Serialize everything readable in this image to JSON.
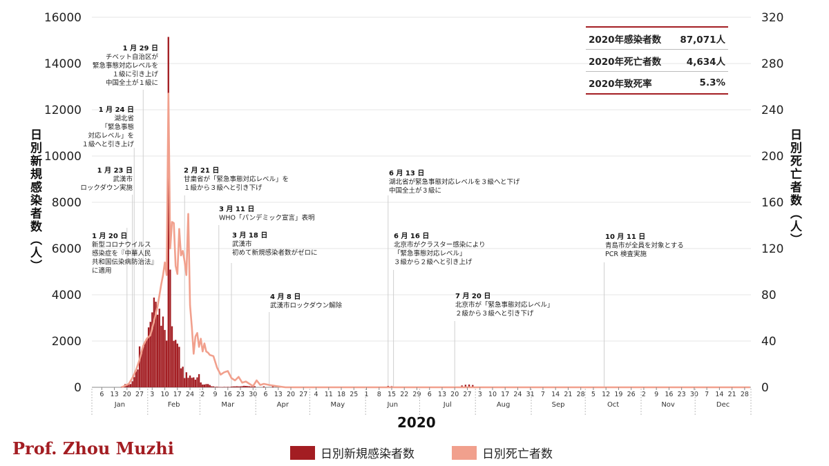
{
  "chart_data": {
    "type": "bar",
    "year_label": "2020",
    "left_axis": {
      "label": "日別新規感染者数（人）",
      "ylim": [
        0,
        16000
      ],
      "ticks": [
        "0",
        "2000",
        "4000",
        "6000",
        "8000",
        "10000",
        "12000",
        "14000",
        "16000"
      ]
    },
    "right_axis": {
      "label": "日別死亡者数（人）",
      "ylim": [
        0,
        320
      ],
      "ticks": [
        "0",
        "40",
        "80",
        "120",
        "160",
        "200",
        "240",
        "280",
        "320"
      ]
    },
    "months": [
      "Jan",
      "Feb",
      "Mar",
      "Apr",
      "May",
      "Jun",
      "Jul",
      "Aug",
      "Sep",
      "Oct",
      "Nov",
      "Dec"
    ],
    "x_ticks": [
      {
        "m": 1,
        "d": 6
      },
      {
        "m": 1,
        "d": 13
      },
      {
        "m": 1,
        "d": 20
      },
      {
        "m": 1,
        "d": 27
      },
      {
        "m": 2,
        "d": 3
      },
      {
        "m": 2,
        "d": 10
      },
      {
        "m": 2,
        "d": 17
      },
      {
        "m": 2,
        "d": 24
      },
      {
        "m": 3,
        "d": 2
      },
      {
        "m": 3,
        "d": 9
      },
      {
        "m": 3,
        "d": 16
      },
      {
        "m": 3,
        "d": 23
      },
      {
        "m": 3,
        "d": 30
      },
      {
        "m": 4,
        "d": 6
      },
      {
        "m": 4,
        "d": 13
      },
      {
        "m": 4,
        "d": 20
      },
      {
        "m": 4,
        "d": 27
      },
      {
        "m": 5,
        "d": 4
      },
      {
        "m": 5,
        "d": 11
      },
      {
        "m": 5,
        "d": 18
      },
      {
        "m": 5,
        "d": 25
      },
      {
        "m": 6,
        "d": 1
      },
      {
        "m": 6,
        "d": 8
      },
      {
        "m": 6,
        "d": 15
      },
      {
        "m": 6,
        "d": 22
      },
      {
        "m": 6,
        "d": 29
      },
      {
        "m": 7,
        "d": 6
      },
      {
        "m": 7,
        "d": 13
      },
      {
        "m": 7,
        "d": 20
      },
      {
        "m": 7,
        "d": 27
      },
      {
        "m": 8,
        "d": 3
      },
      {
        "m": 8,
        "d": 10
      },
      {
        "m": 8,
        "d": 17
      },
      {
        "m": 8,
        "d": 24
      },
      {
        "m": 8,
        "d": 31
      },
      {
        "m": 9,
        "d": 7
      },
      {
        "m": 9,
        "d": 14
      },
      {
        "m": 9,
        "d": 21
      },
      {
        "m": 9,
        "d": 28
      },
      {
        "m": 10,
        "d": 5
      },
      {
        "m": 10,
        "d": 12
      },
      {
        "m": 10,
        "d": 19
      },
      {
        "m": 10,
        "d": 26
      },
      {
        "m": 11,
        "d": 2
      },
      {
        "m": 11,
        "d": 9
      },
      {
        "m": 11,
        "d": 16
      },
      {
        "m": 11,
        "d": 23
      },
      {
        "m": 11,
        "d": 30
      },
      {
        "m": 12,
        "d": 7
      },
      {
        "m": 12,
        "d": 14
      },
      {
        "m": 12,
        "d": 21
      },
      {
        "m": 12,
        "d": 28
      }
    ],
    "series": [
      {
        "name": "日別新規感染者数",
        "color": "#a31d22",
        "axis": "left",
        "points": [
          [
            "2020-01-17",
            20
          ],
          [
            "2020-01-18",
            60
          ],
          [
            "2020-01-19",
            140
          ],
          [
            "2020-01-20",
            80
          ],
          [
            "2020-01-21",
            150
          ],
          [
            "2020-01-22",
            140
          ],
          [
            "2020-01-23",
            260
          ],
          [
            "2020-01-24",
            440
          ],
          [
            "2020-01-25",
            690
          ],
          [
            "2020-01-26",
            770
          ],
          [
            "2020-01-27",
            1770
          ],
          [
            "2020-01-28",
            1460
          ],
          [
            "2020-01-29",
            1740
          ],
          [
            "2020-01-30",
            1980
          ],
          [
            "2020-01-31",
            2100
          ],
          [
            "2020-02-01",
            2590
          ],
          [
            "2020-02-02",
            2830
          ],
          [
            "2020-02-03",
            3240
          ],
          [
            "2020-02-04",
            3880
          ],
          [
            "2020-02-05",
            3700
          ],
          [
            "2020-02-06",
            3140
          ],
          [
            "2020-02-07",
            3400
          ],
          [
            "2020-02-08",
            2660
          ],
          [
            "2020-02-09",
            3060
          ],
          [
            "2020-02-10",
            2480
          ],
          [
            "2020-02-11",
            2020
          ],
          [
            "2020-02-12",
            15150
          ],
          [
            "2020-02-13",
            5090
          ],
          [
            "2020-02-14",
            2640
          ],
          [
            "2020-02-15",
            2010
          ],
          [
            "2020-02-16",
            2050
          ],
          [
            "2020-02-17",
            1890
          ],
          [
            "2020-02-18",
            1750
          ],
          [
            "2020-02-19",
            820
          ],
          [
            "2020-02-20",
            890
          ],
          [
            "2020-02-21",
            400
          ],
          [
            "2020-02-22",
            650
          ],
          [
            "2020-02-23",
            410
          ],
          [
            "2020-02-24",
            510
          ],
          [
            "2020-02-25",
            410
          ],
          [
            "2020-02-26",
            430
          ],
          [
            "2020-02-27",
            330
          ],
          [
            "2020-02-28",
            430
          ],
          [
            "2020-02-29",
            570
          ],
          [
            "2020-03-01",
            210
          ],
          [
            "2020-03-02",
            120
          ],
          [
            "2020-03-03",
            120
          ],
          [
            "2020-03-04",
            140
          ],
          [
            "2020-03-05",
            140
          ],
          [
            "2020-03-06",
            100
          ],
          [
            "2020-03-07",
            45
          ],
          [
            "2020-03-08",
            40
          ],
          [
            "2020-03-09",
            20
          ],
          [
            "2020-03-10",
            25
          ],
          [
            "2020-03-11",
            15
          ],
          [
            "2020-03-12",
            15
          ],
          [
            "2020-03-13",
            10
          ],
          [
            "2020-03-14",
            20
          ],
          [
            "2020-03-15",
            15
          ],
          [
            "2020-03-16",
            20
          ],
          [
            "2020-03-17",
            15
          ],
          [
            "2020-03-18",
            30
          ],
          [
            "2020-03-19",
            40
          ],
          [
            "2020-03-20",
            40
          ],
          [
            "2020-03-21",
            45
          ],
          [
            "2020-03-22",
            40
          ],
          [
            "2020-03-23",
            40
          ],
          [
            "2020-03-24",
            50
          ],
          [
            "2020-03-25",
            65
          ],
          [
            "2020-03-26",
            60
          ],
          [
            "2020-03-27",
            55
          ],
          [
            "2020-03-28",
            45
          ],
          [
            "2020-03-29",
            35
          ],
          [
            "2020-03-30",
            30
          ],
          [
            "2020-03-31",
            45
          ],
          [
            "2020-04-05",
            40
          ],
          [
            "2020-04-10",
            40
          ],
          [
            "2020-04-15",
            40
          ],
          [
            "2020-04-20",
            20
          ],
          [
            "2020-04-30",
            10
          ],
          [
            "2020-06-13",
            60
          ],
          [
            "2020-06-15",
            50
          ],
          [
            "2020-07-24",
            80
          ],
          [
            "2020-07-26",
            110
          ],
          [
            "2020-07-28",
            120
          ],
          [
            "2020-07-30",
            100
          ],
          [
            "2020-08-05",
            30
          ],
          [
            "2020-10-12",
            20
          ],
          [
            "2020-11-01",
            30
          ]
        ]
      },
      {
        "name": "日別死亡者数",
        "color": "#f1a08d",
        "axis": "right",
        "points": [
          [
            "2020-01-17",
            0
          ],
          [
            "2020-01-21",
            3
          ],
          [
            "2020-01-23",
            8
          ],
          [
            "2020-01-25",
            15
          ],
          [
            "2020-01-27",
            24
          ],
          [
            "2020-01-29",
            36
          ],
          [
            "2020-01-31",
            42
          ],
          [
            "2020-02-02",
            45
          ],
          [
            "2020-02-04",
            57
          ],
          [
            "2020-02-06",
            70
          ],
          [
            "2020-02-08",
            89
          ],
          [
            "2020-02-09",
            97
          ],
          [
            "2020-02-10",
            108
          ],
          [
            "2020-02-11",
            97
          ],
          [
            "2020-02-12",
            254
          ],
          [
            "2020-02-13",
            120
          ],
          [
            "2020-02-14",
            143
          ],
          [
            "2020-02-15",
            142
          ],
          [
            "2020-02-16",
            105
          ],
          [
            "2020-02-17",
            98
          ],
          [
            "2020-02-18",
            137
          ],
          [
            "2020-02-19",
            114
          ],
          [
            "2020-02-20",
            118
          ],
          [
            "2020-02-21",
            109
          ],
          [
            "2020-02-22",
            97
          ],
          [
            "2020-02-23",
            150
          ],
          [
            "2020-02-24",
            71
          ],
          [
            "2020-02-25",
            52
          ],
          [
            "2020-02-26",
            29
          ],
          [
            "2020-02-27",
            44
          ],
          [
            "2020-02-28",
            47
          ],
          [
            "2020-02-29",
            35
          ],
          [
            "2020-03-01",
            42
          ],
          [
            "2020-03-02",
            31
          ],
          [
            "2020-03-03",
            38
          ],
          [
            "2020-03-04",
            31
          ],
          [
            "2020-03-05",
            30
          ],
          [
            "2020-03-06",
            28
          ],
          [
            "2020-03-08",
            27
          ],
          [
            "2020-03-10",
            17
          ],
          [
            "2020-03-12",
            11
          ],
          [
            "2020-03-14",
            13
          ],
          [
            "2020-03-16",
            14
          ],
          [
            "2020-03-18",
            8
          ],
          [
            "2020-03-20",
            6
          ],
          [
            "2020-03-22",
            9
          ],
          [
            "2020-03-24",
            4
          ],
          [
            "2020-03-26",
            5
          ],
          [
            "2020-03-28",
            3
          ],
          [
            "2020-03-30",
            1
          ],
          [
            "2020-04-01",
            6
          ],
          [
            "2020-04-03",
            2
          ],
          [
            "2020-04-05",
            3
          ],
          [
            "2020-04-08",
            2
          ],
          [
            "2020-04-12",
            1
          ],
          [
            "2020-04-17",
            0
          ],
          [
            "2020-05-01",
            0
          ],
          [
            "2020-06-13",
            0
          ],
          [
            "2020-07-28",
            0
          ],
          [
            "2020-12-31",
            0
          ]
        ]
      }
    ],
    "annotations": [
      {
        "date": "2020-01-20",
        "title": "1 月 20 日",
        "lines": [
          "新型コロナウイルス",
          "感染症を『中華人民",
          "共和国伝染病防治法』",
          "に適用"
        ],
        "align": "start"
      },
      {
        "date": "2020-01-23",
        "title": "1 月 23 日",
        "lines": [
          "武漢市",
          "ロックダウン実施"
        ],
        "align": "end"
      },
      {
        "date": "2020-01-24",
        "title": "1 月 24 日",
        "lines": [
          "湖北省",
          "「緊急事態",
          "対応レベル」を",
          "１級へと引き上げ"
        ],
        "align": "end"
      },
      {
        "date": "2020-01-29",
        "title": "1 月 29 日",
        "lines": [
          "チベット自治区が",
          "緊急事態対応レベルを",
          "１級に引き上げ",
          "中国全土が１級に"
        ],
        "align": "end"
      },
      {
        "date": "2020-02-21",
        "title": "2 月 21 日",
        "lines": [
          "甘粛省が「緊急事態対応レベル」を",
          "１級から３級へと引き下げ"
        ],
        "align": "start"
      },
      {
        "date": "2020-03-11",
        "title": "3 月 11 日",
        "lines": [
          "WHO「パンデミック宣言」表明"
        ],
        "align": "start"
      },
      {
        "date": "2020-03-18",
        "title": "3 月 18 日",
        "lines": [
          "武漢市",
          "初めて新規感染者数がゼロに"
        ],
        "align": "start"
      },
      {
        "date": "2020-04-08",
        "title": "4 月 8 日",
        "lines": [
          "武漢市ロックダウン解除"
        ],
        "align": "start"
      },
      {
        "date": "2020-06-13",
        "title": "6 月 13 日",
        "lines": [
          "湖北省が緊急事態対応レベルを３級へと下げ",
          "中国全土が３級に"
        ],
        "align": "start"
      },
      {
        "date": "2020-06-16",
        "title": "6 月 16 日",
        "lines": [
          "北京市がクラスター感染により",
          "「緊急事態対応レベル」",
          "３級から２級へと引き上げ"
        ],
        "align": "start"
      },
      {
        "date": "2020-07-20",
        "title": "7 月 20 日",
        "lines": [
          "北京市が「緊急事態対応レベル」",
          "２級から３級へと引き下げ"
        ],
        "align": "start"
      },
      {
        "date": "2020-10-11",
        "title": "10 月 11 日",
        "lines": [
          "青島市が全員を対象とする",
          "PCR 検査実施"
        ],
        "align": "start"
      }
    ]
  },
  "stats": [
    {
      "label": "2020年感染者数",
      "value": "87,071人"
    },
    {
      "label": "2020年死亡者数",
      "value": "4,634人"
    },
    {
      "label": "2020年致死率",
      "value": "5.3%"
    }
  ],
  "credit": "Prof. Zhou Muzhi",
  "colors": {
    "accent": "#a31d22",
    "deaths": "#f1a08d",
    "grid": "#e6e6e6"
  }
}
